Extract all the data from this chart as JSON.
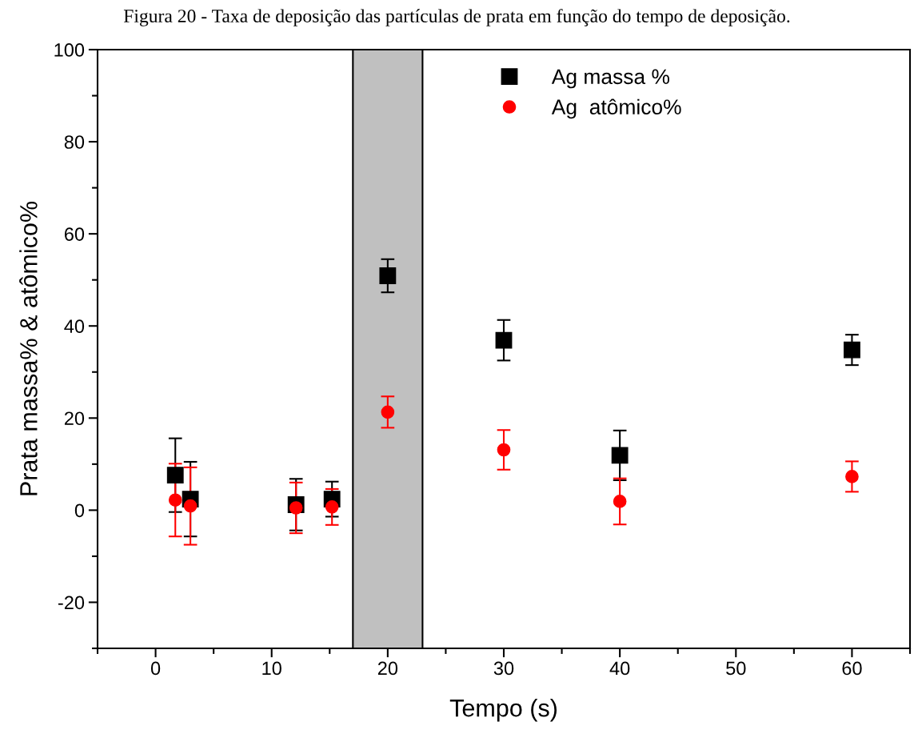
{
  "chart_data": {
    "type": "scatter",
    "title": "Figura 20 - Taxa de deposição das partículas de prata em função do tempo de deposição.",
    "xlabel": "Tempo (s)",
    "ylabel": "Prata massa% & atômico%",
    "xlim": [
      -5,
      65
    ],
    "xticks": [
      0,
      10,
      20,
      30,
      40,
      50,
      60
    ],
    "ylim": [
      -30,
      100
    ],
    "yticks": [
      -20,
      0,
      20,
      40,
      60,
      80,
      100
    ],
    "series": [
      {
        "name": "Ag massa %",
        "color": "#000000",
        "marker": "square",
        "x": [
          1.7,
          3.0,
          12.1,
          15.2,
          20,
          30,
          40,
          60
        ],
        "values": [
          7.6,
          2.4,
          1.2,
          2.4,
          50.9,
          36.9,
          11.9,
          34.8
        ],
        "errors": [
          8,
          8.1,
          5.6,
          3.8,
          3.6,
          4.4,
          5.4,
          3.3
        ]
      },
      {
        "name": "Ag  atômico%",
        "color": "#ff0000",
        "marker": "circle",
        "x": [
          1.7,
          3.0,
          12.1,
          15.2,
          20,
          30,
          40,
          60
        ],
        "values": [
          2.2,
          0.9,
          0.5,
          0.7,
          21.3,
          13.1,
          1.9,
          7.3
        ],
        "errors": [
          7.9,
          8.4,
          5.5,
          3.9,
          3.4,
          4.3,
          5.0,
          3.3
        ]
      }
    ],
    "bands": [
      {
        "axis": "x",
        "from": 17,
        "to": 23,
        "color": "#c0c0c0"
      }
    ],
    "legend": "top",
    "grid": false
  }
}
